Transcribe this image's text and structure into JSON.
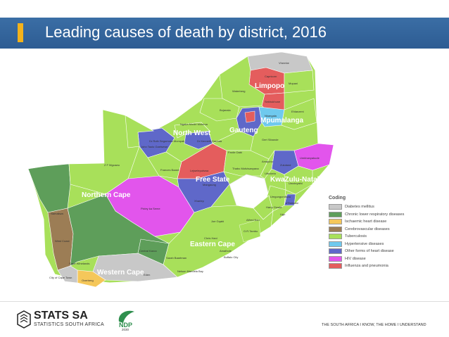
{
  "header": {
    "title": "Leading causes of death by district, 2016"
  },
  "province_labels": {
    "limpopo": "Limpopo",
    "mpumalanga": "Mpumalanga",
    "gauteng": "Gauteng",
    "north_west": "North West",
    "free_state": "Free State",
    "kwazulu_natal": "KwaZulu-Natal",
    "northern_cape": "Northern Cape",
    "eastern_cape": "Eastern Cape",
    "western_cape": "Western Cape"
  },
  "district_labels": {
    "vhembe": "Vhembe",
    "waterberg": "Waterberg",
    "capricorn": "Capricorn",
    "mopani": "Mopani",
    "sekhukhune": "Sekhukhune",
    "ehlanzeni": "Ehlanzeni",
    "bojanala": "Bojanala",
    "nkangala": "Nkangala",
    "gert_sibande": "Gert Sibande",
    "ngaka_modiri_molema": "Ngaka Modiri Molema",
    "dr_ruth_segomotsi_mompati": "Dr Ruth Segomotsi Mompati",
    "dr_kenneth_kaunda": "Dr Kenneth Kaunda",
    "john_taolo_gaetsewe": "John Taolo Gaetsewe",
    "zf_mgcawu": "Z F Mgcawu",
    "frances_baard": "Frances Baard",
    "lejweleputswa": "Lejweleputswa",
    "fezile_dabi": "Fezile Dabi",
    "thabo_mofutsanyana": "Thabo Mofutsanyana",
    "amajuba": "Amajuba",
    "zululand": "Zululand",
    "umkhanyakude": "Umkhanyakude",
    "uthukela": "Uthukela",
    "umzinyathi": "Umzinyathi",
    "mangaung": "Mangaung",
    "xhariep": "Xhariep",
    "pixley_ka_seme": "Pixley ka Seme",
    "namakwa": "Namakwa",
    "harry_gwala": "Harry Gwala",
    "ugu": "Ugu",
    "alfred_nzo": "Alfred Nzo",
    "joe_gqabi": "Joe Gqabi",
    "or_tambo": "O.R.Tambo",
    "chris_hani": "Chris Hani",
    "amathole": "Amathole",
    "buffalo_city": "Buffalo City",
    "sarah_baartman": "Sarah Baartman",
    "nelson_mandela_bay": "Nelson Mandela Bay",
    "west_coast": "West Coast",
    "cape_winelands": "Cape Winelands",
    "central_karoo": "Central Karoo",
    "city_of_cape_town": "City of Cape Town",
    "overberg": "Overberg",
    "eden": "Eden",
    "umgungundlovu": "Umgungundlovu",
    "ethekwini": "eThekwini"
  },
  "legend": {
    "title": "Coding",
    "items": [
      {
        "label": "Diabetes mellitus",
        "color": "#c8c8c8"
      },
      {
        "label": "Chronic lower respiratory diseases",
        "color": "#5e9e5a"
      },
      {
        "label": "Ischaemic heart disease",
        "color": "#f5c75a"
      },
      {
        "label": "Cerebrovascular diseases",
        "color": "#9c7d55"
      },
      {
        "label": "Tuberculosis",
        "color": "#a8e05a"
      },
      {
        "label": "Hypertensive diseases",
        "color": "#6fc9ee"
      },
      {
        "label": "Other forms of heart disease",
        "color": "#5f68c9"
      },
      {
        "label": "HIV disease",
        "color": "#e255ec"
      },
      {
        "label": "Influenza and pneumonia",
        "color": "#e45d5d"
      }
    ]
  },
  "footer": {
    "org_name": "STATS SA",
    "org_sub": "STATISTICS SOUTH AFRICA",
    "ndp_text": "NDP",
    "ndp_year": "2030",
    "tagline": "THE SOUTH AFRICA I KNOW, THE HOME I UNDERSTAND"
  }
}
